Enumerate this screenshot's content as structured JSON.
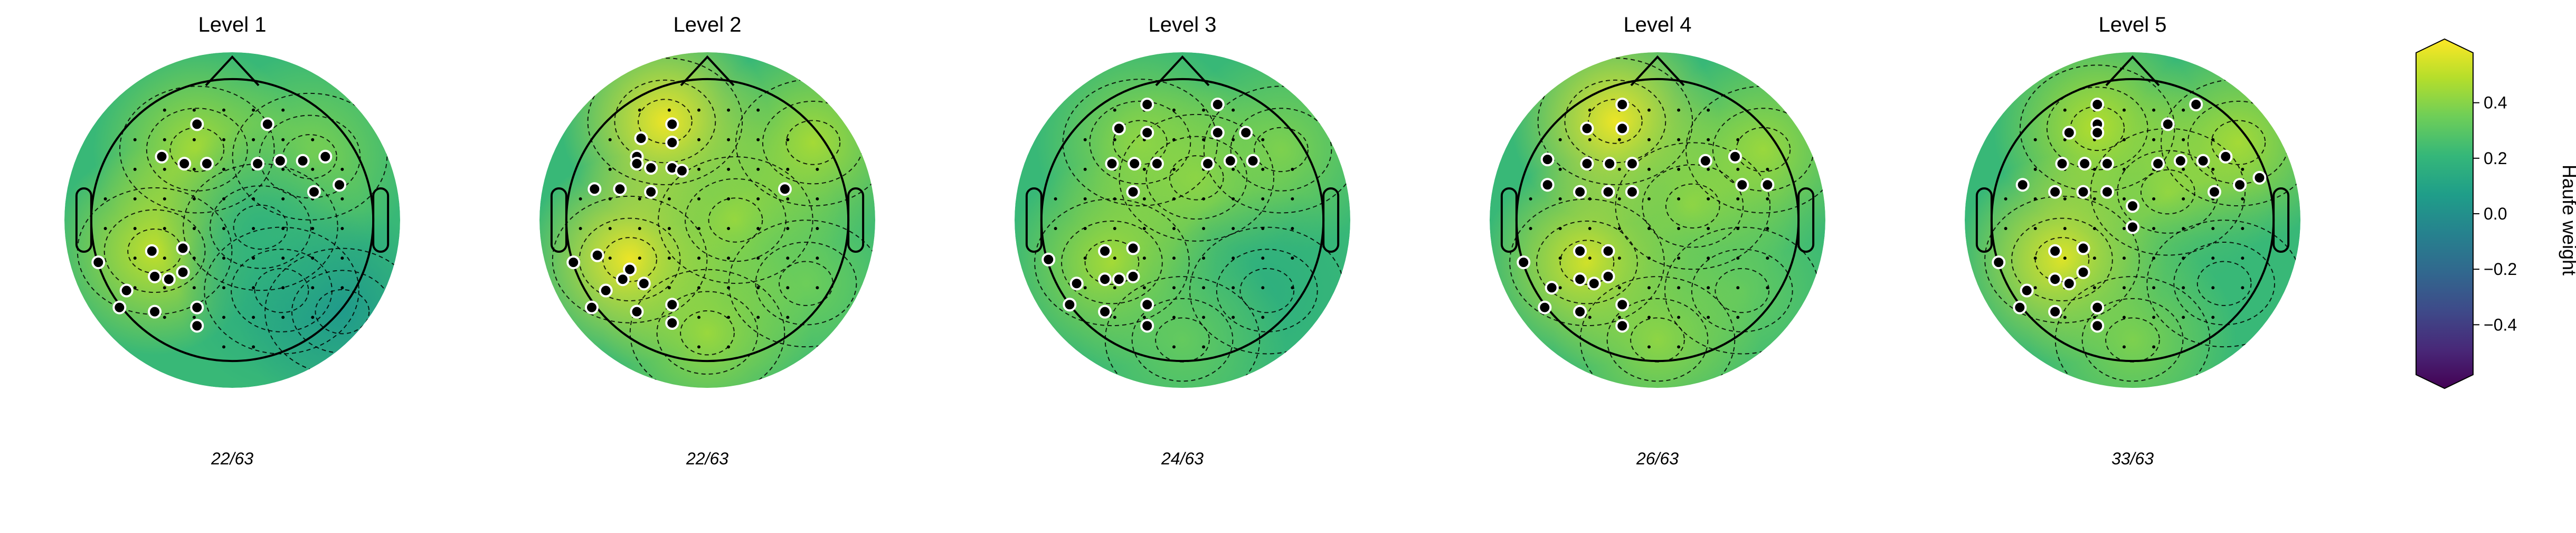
{
  "chart_data": {
    "type": "heatmap",
    "kind": "eeg-topomap",
    "panels": [
      {
        "title": "Level 1",
        "count_label": "22/63",
        "hotspots": [
          {
            "x": -0.25,
            "y": 0.5,
            "v": 0.42
          },
          {
            "x": -0.55,
            "y": -0.22,
            "v": 0.47
          },
          {
            "x": 0.55,
            "y": 0.45,
            "v": 0.35
          },
          {
            "x": 0.35,
            "y": -0.5,
            "v": 0.12
          },
          {
            "x": 0.78,
            "y": -0.65,
            "v": 0.05
          },
          {
            "x": 0.2,
            "y": -0.05,
            "v": 0.18
          }
        ],
        "selected_points": [
          [
            -0.25,
            0.68
          ],
          [
            0.25,
            0.68
          ],
          [
            -0.5,
            0.45
          ],
          [
            -0.34,
            0.4
          ],
          [
            -0.18,
            0.4
          ],
          [
            0.18,
            0.4
          ],
          [
            0.34,
            0.42
          ],
          [
            0.5,
            0.42
          ],
          [
            0.66,
            0.45
          ],
          [
            0.58,
            0.2
          ],
          [
            0.76,
            0.25
          ],
          [
            -0.57,
            -0.22
          ],
          [
            -0.35,
            -0.2
          ],
          [
            -0.55,
            -0.4
          ],
          [
            -0.45,
            -0.42
          ],
          [
            -0.35,
            -0.37
          ],
          [
            -0.95,
            -0.3
          ],
          [
            -0.75,
            -0.5
          ],
          [
            -0.8,
            -0.62
          ],
          [
            -0.55,
            -0.65
          ],
          [
            -0.25,
            -0.62
          ],
          [
            -0.25,
            -0.75
          ]
        ]
      },
      {
        "title": "Level 2",
        "count_label": "22/63",
        "hotspots": [
          {
            "x": -0.3,
            "y": 0.7,
            "v": 0.55
          },
          {
            "x": -0.55,
            "y": -0.28,
            "v": 0.55
          },
          {
            "x": 0.2,
            "y": 0.0,
            "v": 0.4
          },
          {
            "x": 0.75,
            "y": 0.55,
            "v": 0.42
          },
          {
            "x": 0.7,
            "y": -0.45,
            "v": 0.32
          },
          {
            "x": 0.0,
            "y": -0.8,
            "v": 0.4
          }
        ],
        "selected_points": [
          [
            -0.25,
            0.68
          ],
          [
            -0.5,
            0.45
          ],
          [
            -0.47,
            0.58
          ],
          [
            -0.25,
            0.55
          ],
          [
            -0.5,
            0.4
          ],
          [
            -0.4,
            0.37
          ],
          [
            -0.25,
            0.37
          ],
          [
            -0.18,
            0.35
          ],
          [
            -0.8,
            0.22
          ],
          [
            -0.62,
            0.22
          ],
          [
            -0.4,
            0.2
          ],
          [
            0.55,
            0.22
          ],
          [
            -0.78,
            -0.25
          ],
          [
            -0.55,
            -0.35
          ],
          [
            -0.6,
            -0.42
          ],
          [
            -0.45,
            -0.45
          ],
          [
            -0.95,
            -0.3
          ],
          [
            -0.72,
            -0.5
          ],
          [
            -0.82,
            -0.62
          ],
          [
            -0.5,
            -0.65
          ],
          [
            -0.25,
            -0.6
          ],
          [
            -0.25,
            -0.73
          ]
        ]
      },
      {
        "title": "Level 3",
        "count_label": "24/63",
        "hotspots": [
          {
            "x": -0.3,
            "y": 0.55,
            "v": 0.38
          },
          {
            "x": -0.5,
            "y": -0.3,
            "v": 0.42
          },
          {
            "x": 0.1,
            "y": 0.3,
            "v": 0.38
          },
          {
            "x": 0.7,
            "y": 0.5,
            "v": 0.35
          },
          {
            "x": 0.6,
            "y": -0.5,
            "v": 0.15
          },
          {
            "x": 0.0,
            "y": -0.85,
            "v": 0.3
          }
        ],
        "selected_points": [
          [
            -0.25,
            0.82
          ],
          [
            0.25,
            0.82
          ],
          [
            -0.45,
            0.65
          ],
          [
            -0.25,
            0.62
          ],
          [
            0.25,
            0.62
          ],
          [
            0.45,
            0.62
          ],
          [
            -0.5,
            0.4
          ],
          [
            -0.34,
            0.4
          ],
          [
            -0.18,
            0.4
          ],
          [
            0.18,
            0.4
          ],
          [
            0.34,
            0.42
          ],
          [
            0.5,
            0.42
          ],
          [
            -0.35,
            0.2
          ],
          [
            -0.55,
            -0.22
          ],
          [
            -0.35,
            -0.2
          ],
          [
            -0.55,
            -0.42
          ],
          [
            -0.45,
            -0.42
          ],
          [
            -0.35,
            -0.4
          ],
          [
            -0.95,
            -0.28
          ],
          [
            -0.75,
            -0.45
          ],
          [
            -0.8,
            -0.6
          ],
          [
            -0.55,
            -0.65
          ],
          [
            -0.25,
            -0.6
          ],
          [
            -0.25,
            -0.75
          ]
        ]
      },
      {
        "title": "Level 4",
        "count_label": "26/63",
        "hotspots": [
          {
            "x": -0.3,
            "y": 0.7,
            "v": 0.55
          },
          {
            "x": -0.5,
            "y": -0.3,
            "v": 0.5
          },
          {
            "x": 0.25,
            "y": 0.1,
            "v": 0.38
          },
          {
            "x": 0.75,
            "y": 0.5,
            "v": 0.4
          },
          {
            "x": 0.6,
            "y": -0.5,
            "v": 0.3
          },
          {
            "x": 0.0,
            "y": -0.85,
            "v": 0.38
          }
        ],
        "selected_points": [
          [
            -0.5,
            0.65
          ],
          [
            -0.25,
            0.65
          ],
          [
            -0.25,
            0.82
          ],
          [
            -0.78,
            0.43
          ],
          [
            -0.5,
            0.4
          ],
          [
            -0.34,
            0.4
          ],
          [
            -0.18,
            0.4
          ],
          [
            -0.78,
            0.25
          ],
          [
            -0.55,
            0.2
          ],
          [
            -0.35,
            0.2
          ],
          [
            -0.18,
            0.2
          ],
          [
            0.34,
            0.42
          ],
          [
            0.55,
            0.45
          ],
          [
            0.6,
            0.25
          ],
          [
            0.78,
            0.25
          ],
          [
            -0.55,
            -0.22
          ],
          [
            -0.35,
            -0.22
          ],
          [
            -0.55,
            -0.42
          ],
          [
            -0.45,
            -0.45
          ],
          [
            -0.35,
            -0.4
          ],
          [
            -0.95,
            -0.3
          ],
          [
            -0.75,
            -0.48
          ],
          [
            -0.8,
            -0.62
          ],
          [
            -0.55,
            -0.65
          ],
          [
            -0.25,
            -0.6
          ],
          [
            -0.25,
            -0.75
          ]
        ]
      },
      {
        "title": "Level 5",
        "count_label": "33/63",
        "hotspots": [
          {
            "x": -0.25,
            "y": 0.65,
            "v": 0.45
          },
          {
            "x": -0.5,
            "y": -0.28,
            "v": 0.52
          },
          {
            "x": 0.25,
            "y": 0.2,
            "v": 0.38
          },
          {
            "x": 0.75,
            "y": 0.55,
            "v": 0.42
          },
          {
            "x": 0.65,
            "y": -0.45,
            "v": 0.2
          },
          {
            "x": 0.0,
            "y": -0.85,
            "v": 0.35
          }
        ],
        "selected_points": [
          [
            -0.25,
            0.68
          ],
          [
            0.25,
            0.68
          ],
          [
            -0.5,
            0.4
          ],
          [
            -0.34,
            0.4
          ],
          [
            -0.18,
            0.4
          ],
          [
            0.18,
            0.4
          ],
          [
            0.34,
            0.42
          ],
          [
            0.5,
            0.42
          ],
          [
            0.66,
            0.45
          ],
          [
            -0.45,
            0.62
          ],
          [
            -0.25,
            0.62
          ],
          [
            -0.25,
            0.82
          ],
          [
            0.45,
            0.82
          ],
          [
            -0.78,
            0.25
          ],
          [
            -0.55,
            0.2
          ],
          [
            -0.35,
            0.2
          ],
          [
            -0.18,
            0.2
          ],
          [
            0.0,
            0.1
          ],
          [
            0.0,
            -0.05
          ],
          [
            0.58,
            0.2
          ],
          [
            0.76,
            0.25
          ],
          [
            -0.55,
            -0.22
          ],
          [
            -0.35,
            -0.2
          ],
          [
            -0.55,
            -0.42
          ],
          [
            -0.45,
            -0.45
          ],
          [
            -0.35,
            -0.37
          ],
          [
            -0.95,
            -0.3
          ],
          [
            -0.75,
            -0.5
          ],
          [
            -0.8,
            -0.62
          ],
          [
            -0.55,
            -0.65
          ],
          [
            -0.25,
            -0.62
          ],
          [
            -0.25,
            -0.75
          ],
          [
            0.9,
            0.3
          ]
        ]
      }
    ],
    "colorbar": {
      "label": "Haufe weight",
      "ticks": [
        0.4,
        0.2,
        0.0,
        -0.2,
        -0.4
      ],
      "tick_labels": [
        "0.4",
        "0.2",
        "0.0",
        "−0.2",
        "−0.4"
      ],
      "vmin": -0.58,
      "vmax": 0.58,
      "extend": "both",
      "colormap": "viridis",
      "colormap_stops": [
        "#440154",
        "#482878",
        "#3e4a89",
        "#31688e",
        "#26828e",
        "#1f9e89",
        "#35b779",
        "#6ece58",
        "#b5de2b",
        "#fde725"
      ]
    },
    "base_value": 0.2,
    "contour_style": "dashed",
    "sensor_count": 63
  }
}
